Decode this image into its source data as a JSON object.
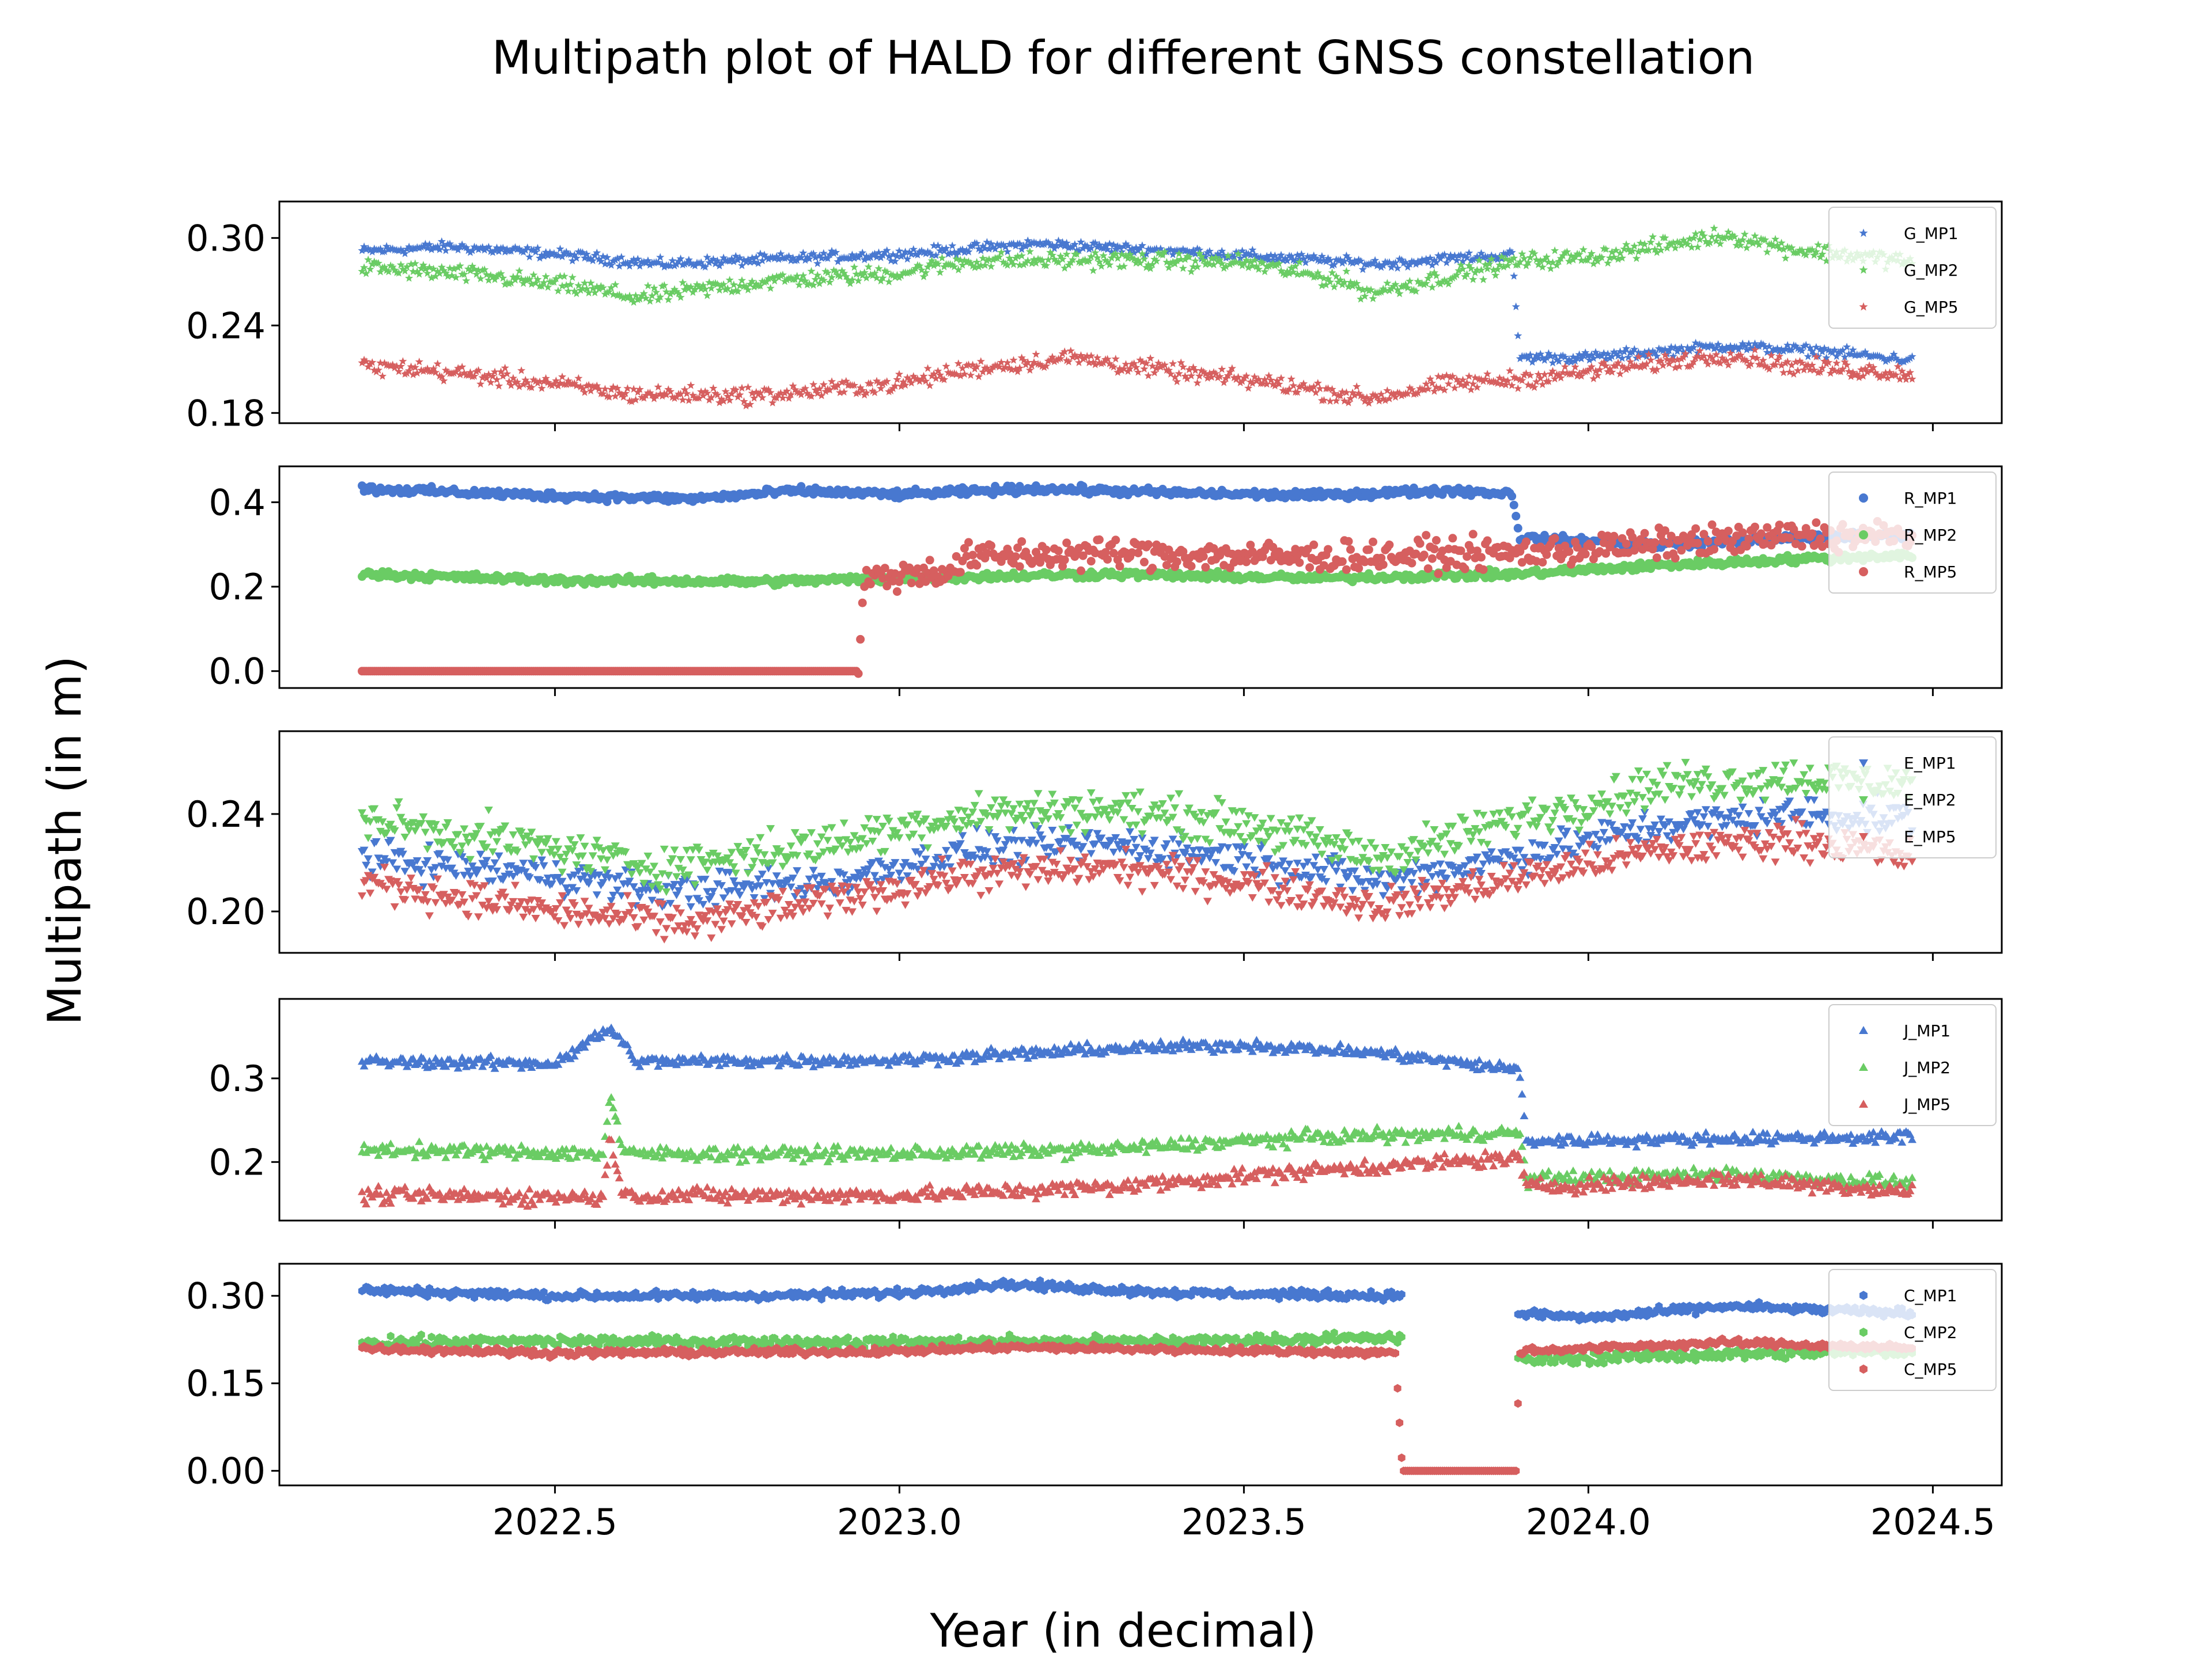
{
  "chart_data": {
    "type": "scatter",
    "title": "Multipath plot of HALD for different GNSS constellation",
    "xlabel": "Year (in decimal)",
    "ylabel": "Multipath (in m)",
    "xlim": [
      2022.1,
      2024.6
    ],
    "xticks": [
      2022.5,
      2023.0,
      2023.5,
      2024.0,
      2024.5
    ],
    "xtick_labels": [
      "2022.5",
      "2023.0",
      "2023.5",
      "2024.0",
      "2024.5"
    ],
    "legend_position": "top-right",
    "grid": false,
    "colors": {
      "MP1": "#4878d0",
      "MP2": "#6acc64",
      "MP5": "#d65f5f"
    },
    "panels": [
      {
        "id": "G",
        "marker": "star",
        "ylim": [
          0.173,
          0.325
        ],
        "yticks": [
          0.18,
          0.24,
          0.3
        ],
        "ytick_labels": [
          "0.18",
          "0.24",
          "0.30"
        ],
        "series": [
          {
            "name": "G_MP1",
            "key": "MP1",
            "keypoints": [
              [
                2022.22,
                0.291
              ],
              [
                2022.35,
                0.294
              ],
              [
                2022.5,
                0.289
              ],
              [
                2022.65,
                0.282
              ],
              [
                2022.8,
                0.285
              ],
              [
                2023.0,
                0.289
              ],
              [
                2023.2,
                0.296
              ],
              [
                2023.4,
                0.291
              ],
              [
                2023.6,
                0.285
              ],
              [
                2023.7,
                0.282
              ],
              [
                2023.8,
                0.286
              ],
              [
                2023.89,
                0.288
              ],
              [
                2023.9,
                0.218
              ],
              [
                2024.0,
                0.218
              ],
              [
                2024.2,
                0.226
              ],
              [
                2024.35,
                0.222
              ],
              [
                2024.47,
                0.216
              ]
            ],
            "noise": 0.003
          },
          {
            "name": "G_MP2",
            "key": "MP2",
            "keypoints": [
              [
                2022.22,
                0.28
              ],
              [
                2022.4,
                0.274
              ],
              [
                2022.55,
                0.265
              ],
              [
                2022.62,
                0.259
              ],
              [
                2022.8,
                0.27
              ],
              [
                2023.0,
                0.276
              ],
              [
                2023.1,
                0.284
              ],
              [
                2023.3,
                0.285
              ],
              [
                2023.5,
                0.283
              ],
              [
                2023.65,
                0.27
              ],
              [
                2023.68,
                0.262
              ],
              [
                2023.8,
                0.274
              ],
              [
                2023.9,
                0.284
              ],
              [
                2024.0,
                0.287
              ],
              [
                2024.1,
                0.294
              ],
              [
                2024.2,
                0.302
              ],
              [
                2024.3,
                0.292
              ],
              [
                2024.47,
                0.284
              ]
            ],
            "noise": 0.005
          },
          {
            "name": "G_MP5",
            "key": "MP5",
            "keypoints": [
              [
                2022.22,
                0.212
              ],
              [
                2022.3,
                0.21
              ],
              [
                2022.5,
                0.2
              ],
              [
                2022.6,
                0.193
              ],
              [
                2022.8,
                0.192
              ],
              [
                2023.0,
                0.2
              ],
              [
                2023.1,
                0.21
              ],
              [
                2023.25,
                0.218
              ],
              [
                2023.4,
                0.208
              ],
              [
                2023.55,
                0.2
              ],
              [
                2023.68,
                0.19
              ],
              [
                2023.8,
                0.2
              ],
              [
                2023.9,
                0.203
              ],
              [
                2024.0,
                0.208
              ],
              [
                2024.2,
                0.22
              ],
              [
                2024.3,
                0.212
              ],
              [
                2024.47,
                0.207
              ]
            ],
            "noise": 0.005
          }
        ]
      },
      {
        "id": "R",
        "marker": "circle",
        "ylim": [
          -0.04,
          0.485
        ],
        "yticks": [
          0.0,
          0.2,
          0.4
        ],
        "ytick_labels": [
          "0.0",
          "0.2",
          "0.4"
        ],
        "series": [
          {
            "name": "R_MP1",
            "key": "MP1",
            "keypoints": [
              [
                2022.22,
                0.432
              ],
              [
                2022.5,
                0.415
              ],
              [
                2022.7,
                0.408
              ],
              [
                2022.85,
                0.427
              ],
              [
                2023.0,
                0.418
              ],
              [
                2023.2,
                0.432
              ],
              [
                2023.4,
                0.422
              ],
              [
                2023.6,
                0.416
              ],
              [
                2023.8,
                0.428
              ],
              [
                2023.89,
                0.42
              ],
              [
                2023.9,
                0.315
              ],
              [
                2024.1,
                0.3
              ],
              [
                2024.3,
                0.315
              ],
              [
                2024.47,
                0.325
              ]
            ],
            "noise": 0.008
          },
          {
            "name": "R_MP2",
            "key": "MP2",
            "keypoints": [
              [
                2022.22,
                0.23
              ],
              [
                2022.5,
                0.215
              ],
              [
                2022.8,
                0.212
              ],
              [
                2023.0,
                0.22
              ],
              [
                2023.3,
                0.23
              ],
              [
                2023.6,
                0.22
              ],
              [
                2023.9,
                0.23
              ],
              [
                2024.1,
                0.25
              ],
              [
                2024.3,
                0.265
              ],
              [
                2024.47,
                0.275
              ]
            ],
            "noise": 0.008
          },
          {
            "name": "R_MP5",
            "key": "MP5",
            "keypoints": [
              [
                2022.22,
                0.0
              ],
              [
                2022.94,
                0.0
              ],
              [
                2022.95,
                0.22
              ],
              [
                2023.08,
                0.24
              ],
              [
                2023.1,
                0.27
              ],
              [
                2023.3,
                0.28
              ],
              [
                2023.6,
                0.27
              ],
              [
                2023.9,
                0.28
              ],
              [
                2024.1,
                0.3
              ],
              [
                2024.3,
                0.32
              ],
              [
                2024.47,
                0.32
              ]
            ],
            "noise": 0.03
          }
        ]
      },
      {
        "id": "E",
        "marker": "triangle-down",
        "ylim": [
          0.183,
          0.274
        ],
        "yticks": [
          0.2,
          0.24
        ],
        "ytick_labels": [
          "0.20",
          "0.24"
        ],
        "series": [
          {
            "name": "E_MP1",
            "key": "MP1",
            "keypoints": [
              [
                2022.22,
                0.222
              ],
              [
                2022.5,
                0.215
              ],
              [
                2022.65,
                0.208
              ],
              [
                2022.9,
                0.212
              ],
              [
                2023.1,
                0.225
              ],
              [
                2023.3,
                0.228
              ],
              [
                2023.5,
                0.222
              ],
              [
                2023.7,
                0.212
              ],
              [
                2023.9,
                0.223
              ],
              [
                2024.1,
                0.235
              ],
              [
                2024.3,
                0.24
              ],
              [
                2024.47,
                0.238
              ]
            ],
            "noise": 0.006
          },
          {
            "name": "E_MP2",
            "key": "MP2",
            "keypoints": [
              [
                2022.22,
                0.238
              ],
              [
                2022.45,
                0.228
              ],
              [
                2022.65,
                0.218
              ],
              [
                2022.9,
                0.228
              ],
              [
                2023.1,
                0.24
              ],
              [
                2023.3,
                0.242
              ],
              [
                2023.5,
                0.236
              ],
              [
                2023.7,
                0.222
              ],
              [
                2023.9,
                0.238
              ],
              [
                2024.1,
                0.252
              ],
              [
                2024.3,
                0.255
              ],
              [
                2024.47,
                0.252
              ]
            ],
            "noise": 0.007
          },
          {
            "name": "E_MP5",
            "key": "MP5",
            "keypoints": [
              [
                2022.22,
                0.212
              ],
              [
                2022.5,
                0.2
              ],
              [
                2022.7,
                0.195
              ],
              [
                2022.9,
                0.205
              ],
              [
                2023.1,
                0.215
              ],
              [
                2023.3,
                0.218
              ],
              [
                2023.5,
                0.212
              ],
              [
                2023.7,
                0.202
              ],
              [
                2023.9,
                0.214
              ],
              [
                2024.1,
                0.225
              ],
              [
                2024.3,
                0.23
              ],
              [
                2024.47,
                0.222
              ]
            ],
            "noise": 0.006
          }
        ]
      },
      {
        "id": "J",
        "marker": "triangle-up",
        "ylim": [
          0.13,
          0.395
        ],
        "yticks": [
          0.2,
          0.3
        ],
        "ytick_labels": [
          "0.2",
          "0.3"
        ],
        "series": [
          {
            "name": "J_MP1",
            "key": "MP1",
            "keypoints": [
              [
                2022.22,
                0.32
              ],
              [
                2022.5,
                0.318
              ],
              [
                2022.58,
                0.36
              ],
              [
                2022.62,
                0.32
              ],
              [
                2023.0,
                0.322
              ],
              [
                2023.3,
                0.335
              ],
              [
                2023.5,
                0.34
              ],
              [
                2023.7,
                0.33
              ],
              [
                2023.9,
                0.31
              ],
              [
                2023.91,
                0.225
              ],
              [
                2024.2,
                0.228
              ],
              [
                2024.47,
                0.23
              ]
            ],
            "noise": 0.006
          },
          {
            "name": "J_MP2",
            "key": "MP2",
            "keypoints": [
              [
                2022.22,
                0.215
              ],
              [
                2022.57,
                0.21
              ],
              [
                2022.58,
                0.28
              ],
              [
                2022.6,
                0.21
              ],
              [
                2023.0,
                0.21
              ],
              [
                2023.3,
                0.215
              ],
              [
                2023.6,
                0.23
              ],
              [
                2023.9,
                0.235
              ],
              [
                2023.91,
                0.18
              ],
              [
                2024.2,
                0.185
              ],
              [
                2024.47,
                0.175
              ]
            ],
            "noise": 0.007
          },
          {
            "name": "J_MP5",
            "key": "MP5",
            "keypoints": [
              [
                2022.22,
                0.16
              ],
              [
                2022.57,
                0.158
              ],
              [
                2022.58,
                0.23
              ],
              [
                2022.6,
                0.16
              ],
              [
                2023.0,
                0.16
              ],
              [
                2023.3,
                0.17
              ],
              [
                2023.6,
                0.19
              ],
              [
                2023.9,
                0.205
              ],
              [
                2023.91,
                0.17
              ],
              [
                2024.2,
                0.18
              ],
              [
                2024.47,
                0.165
              ]
            ],
            "noise": 0.008
          }
        ]
      },
      {
        "id": "C",
        "marker": "hexagon",
        "ylim": [
          -0.025,
          0.355
        ],
        "yticks": [
          0.0,
          0.15,
          0.3
        ],
        "ytick_labels": [
          "0.00",
          "0.15",
          "0.30"
        ],
        "series": [
          {
            "name": "C_MP1",
            "key": "MP1",
            "keypoints": [
              [
                2022.22,
                0.31
              ],
              [
                2022.5,
                0.3
              ],
              [
                2022.8,
                0.3
              ],
              [
                2023.0,
                0.305
              ],
              [
                2023.15,
                0.32
              ],
              [
                2023.4,
                0.305
              ],
              [
                2023.72,
                0.3
              ],
              [
                2023.9,
                0.27
              ],
              [
                2024.0,
                0.262
              ],
              [
                2024.2,
                0.282
              ],
              [
                2024.47,
                0.27
              ]
            ],
            "noise": 0.006,
            "gap": [
              2023.73,
              2023.895
            ]
          },
          {
            "name": "C_MP2",
            "key": "MP2",
            "keypoints": [
              [
                2022.22,
                0.22
              ],
              [
                2022.5,
                0.222
              ],
              [
                2023.0,
                0.22
              ],
              [
                2023.4,
                0.222
              ],
              [
                2023.72,
                0.228
              ],
              [
                2023.9,
                0.19
              ],
              [
                2024.2,
                0.2
              ],
              [
                2024.47,
                0.205
              ]
            ],
            "noise": 0.008,
            "gap": [
              2023.73,
              2023.895
            ]
          },
          {
            "name": "C_MP5",
            "key": "MP5",
            "keypoints": [
              [
                2022.22,
                0.21
              ],
              [
                2022.5,
                0.202
              ],
              [
                2023.0,
                0.205
              ],
              [
                2023.15,
                0.212
              ],
              [
                2023.4,
                0.208
              ],
              [
                2023.72,
                0.202
              ],
              [
                2023.73,
                0.0
              ],
              [
                2023.895,
                0.0
              ],
              [
                2023.9,
                0.205
              ],
              [
                2024.2,
                0.22
              ],
              [
                2024.47,
                0.21
              ]
            ],
            "noise": 0.005
          }
        ]
      }
    ]
  }
}
